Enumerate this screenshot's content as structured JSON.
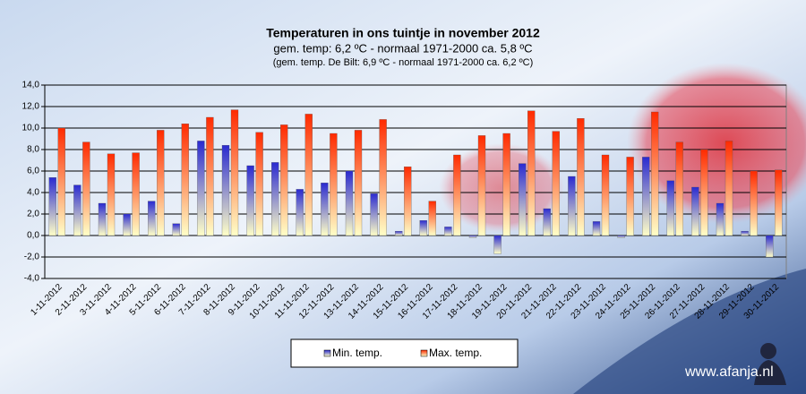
{
  "chart_data": {
    "type": "bar",
    "title": "Temperaturen  in ons tuintje in november 2012",
    "subtitle": "gem.  temp: 6,2 ºC - normaal  1971-2000  ca. 5,8 ºC",
    "note": "(gem. temp. De Bilt: 6,9 ºC - normaal 1971-2000 ca. 6,2 ºC)",
    "watermark": "www.afanja.nl",
    "categories": [
      "1-11-2012",
      "2-11-2012",
      "3-11-2012",
      "4-11-2012",
      "5-11-2012",
      "6-11-2012",
      "7-11-2012",
      "8-11-2012",
      "9-11-2012",
      "10-11-2012",
      "11-11-2012",
      "12-11-2012",
      "13-11-2012",
      "14-11-2012",
      "15-11-2012",
      "16-11-2012",
      "17-11-2012",
      "18-11-2012",
      "19-11-2012",
      "20-11-2012",
      "21-11-2012",
      "22-11-2012",
      "23-11-2012",
      "24-11-2012",
      "25-11-2012",
      "26-11-2012",
      "27-11-2012",
      "28-11-2012",
      "29-11-2012",
      "30-11-2012"
    ],
    "series": [
      {
        "name": "Min. temp.",
        "color": "#2a2ad0",
        "values": [
          5.4,
          4.7,
          3.0,
          2.0,
          3.2,
          1.1,
          8.8,
          8.4,
          6.5,
          6.8,
          4.3,
          4.9,
          6.0,
          3.9,
          0.4,
          1.4,
          0.8,
          -0.2,
          -1.7,
          6.7,
          2.5,
          5.5,
          1.3,
          -0.2,
          7.3,
          5.1,
          4.5,
          3.0,
          0.4,
          -2.0
        ]
      },
      {
        "name": "Max. temp.",
        "color": "#ff2a00",
        "values": [
          10.0,
          8.7,
          7.6,
          7.7,
          9.8,
          10.4,
          11.0,
          11.7,
          9.6,
          10.3,
          11.3,
          9.5,
          9.8,
          10.8,
          6.4,
          3.2,
          7.5,
          9.3,
          9.5,
          11.6,
          9.7,
          10.9,
          7.5,
          7.3,
          11.5,
          8.7,
          8.0,
          8.8,
          6.0,
          6.1
        ]
      }
    ],
    "ylim": [
      -4,
      14
    ],
    "yticks": [
      {
        "value": -4,
        "label": "-4,0"
      },
      {
        "value": -2,
        "label": "-2,0"
      },
      {
        "value": 0,
        "label": "0,0"
      },
      {
        "value": 2,
        "label": "2,0"
      },
      {
        "value": 4,
        "label": "4,0"
      },
      {
        "value": 6,
        "label": "6,0"
      },
      {
        "value": 8,
        "label": "8,0"
      },
      {
        "value": 10,
        "label": "10,0"
      },
      {
        "value": 12,
        "label": "12,0"
      },
      {
        "value": 14,
        "label": "14,0"
      }
    ],
    "grid": true
  }
}
